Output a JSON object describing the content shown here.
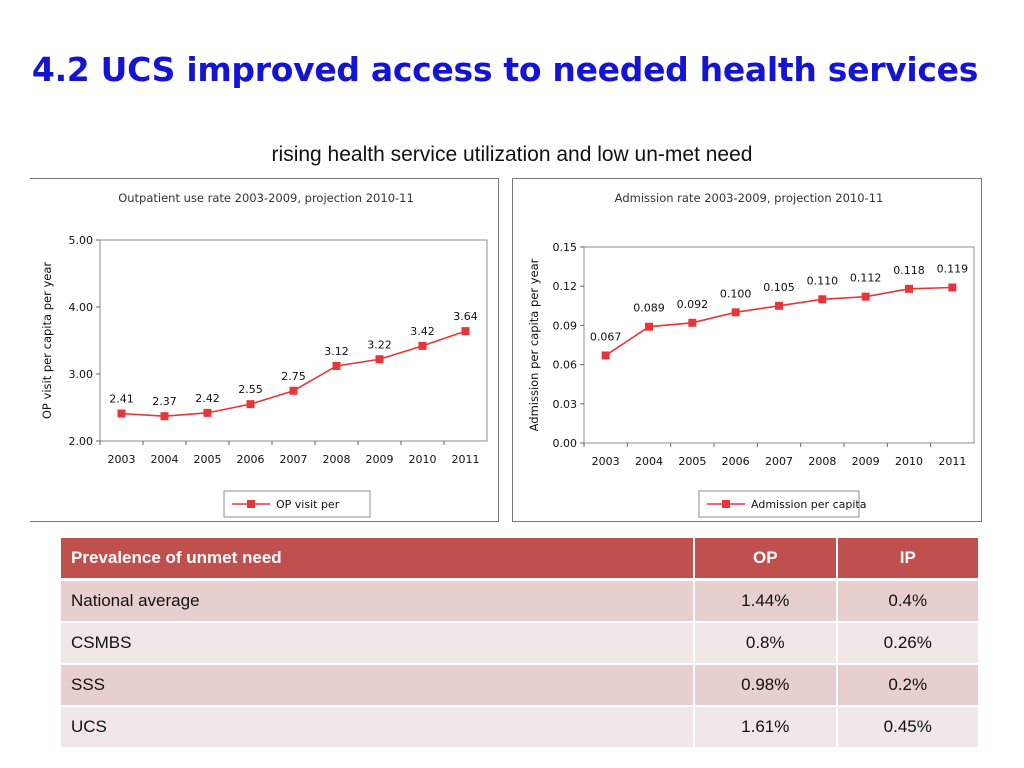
{
  "slide": {
    "title": "4.2 UCS improved access to needed health services",
    "subtitle": "rising health service utilization and low un-met need"
  },
  "colors": {
    "title": "#1414d2",
    "series": "#e5363a",
    "table_header": "#c0504d"
  },
  "chart_data": [
    {
      "type": "line",
      "title": "Outpatient use rate 2003-2009, projection 2010-11",
      "xlabel": "",
      "ylabel": "OP visit per capita per year",
      "categories": [
        "2003",
        "2004",
        "2005",
        "2006",
        "2007",
        "2008",
        "2009",
        "2010",
        "2011"
      ],
      "series": [
        {
          "name": "OP visit per",
          "values": [
            2.41,
            2.37,
            2.42,
            2.55,
            2.75,
            3.12,
            3.22,
            3.42,
            3.64
          ]
        }
      ],
      "data_labels": [
        "2.41",
        "2.37",
        "2.42",
        "2.55",
        "2.75",
        "3.12",
        "3.22",
        "3.42",
        "3.64"
      ],
      "ylim": [
        2.0,
        5.0
      ],
      "yticks": [
        "2.00",
        "3.00",
        "4.00",
        "5.00"
      ],
      "grid": false,
      "legend": "bottom"
    },
    {
      "type": "line",
      "title": "Admission rate 2003-2009, projection 2010-11",
      "xlabel": "",
      "ylabel": "Admission per capita per year",
      "categories": [
        "2003",
        "2004",
        "2005",
        "2006",
        "2007",
        "2008",
        "2009",
        "2010",
        "2011"
      ],
      "series": [
        {
          "name": "Admission per capita",
          "values": [
            0.067,
            0.089,
            0.092,
            0.1,
            0.105,
            0.11,
            0.112,
            0.118,
            0.119
          ]
        }
      ],
      "data_labels": [
        "0.067",
        "0.089",
        "0.092",
        "0.100",
        "0.105",
        "0.110",
        "0.112",
        "0.118",
        "0.119"
      ],
      "ylim": [
        0.0,
        0.15
      ],
      "yticks": [
        "0.00",
        "0.03",
        "0.06",
        "0.09",
        "0.12",
        "0.15"
      ],
      "grid": false,
      "legend": "bottom"
    }
  ],
  "table": {
    "headers": [
      "Prevalence of unmet need",
      "OP",
      "IP"
    ],
    "rows": [
      [
        "National average",
        "1.44%",
        "0.4%"
      ],
      [
        "CSMBS",
        "0.8%",
        "0.26%"
      ],
      [
        "SSS",
        "0.98%",
        "0.2%"
      ],
      [
        "UCS",
        "1.61%",
        "0.45%"
      ]
    ]
  }
}
